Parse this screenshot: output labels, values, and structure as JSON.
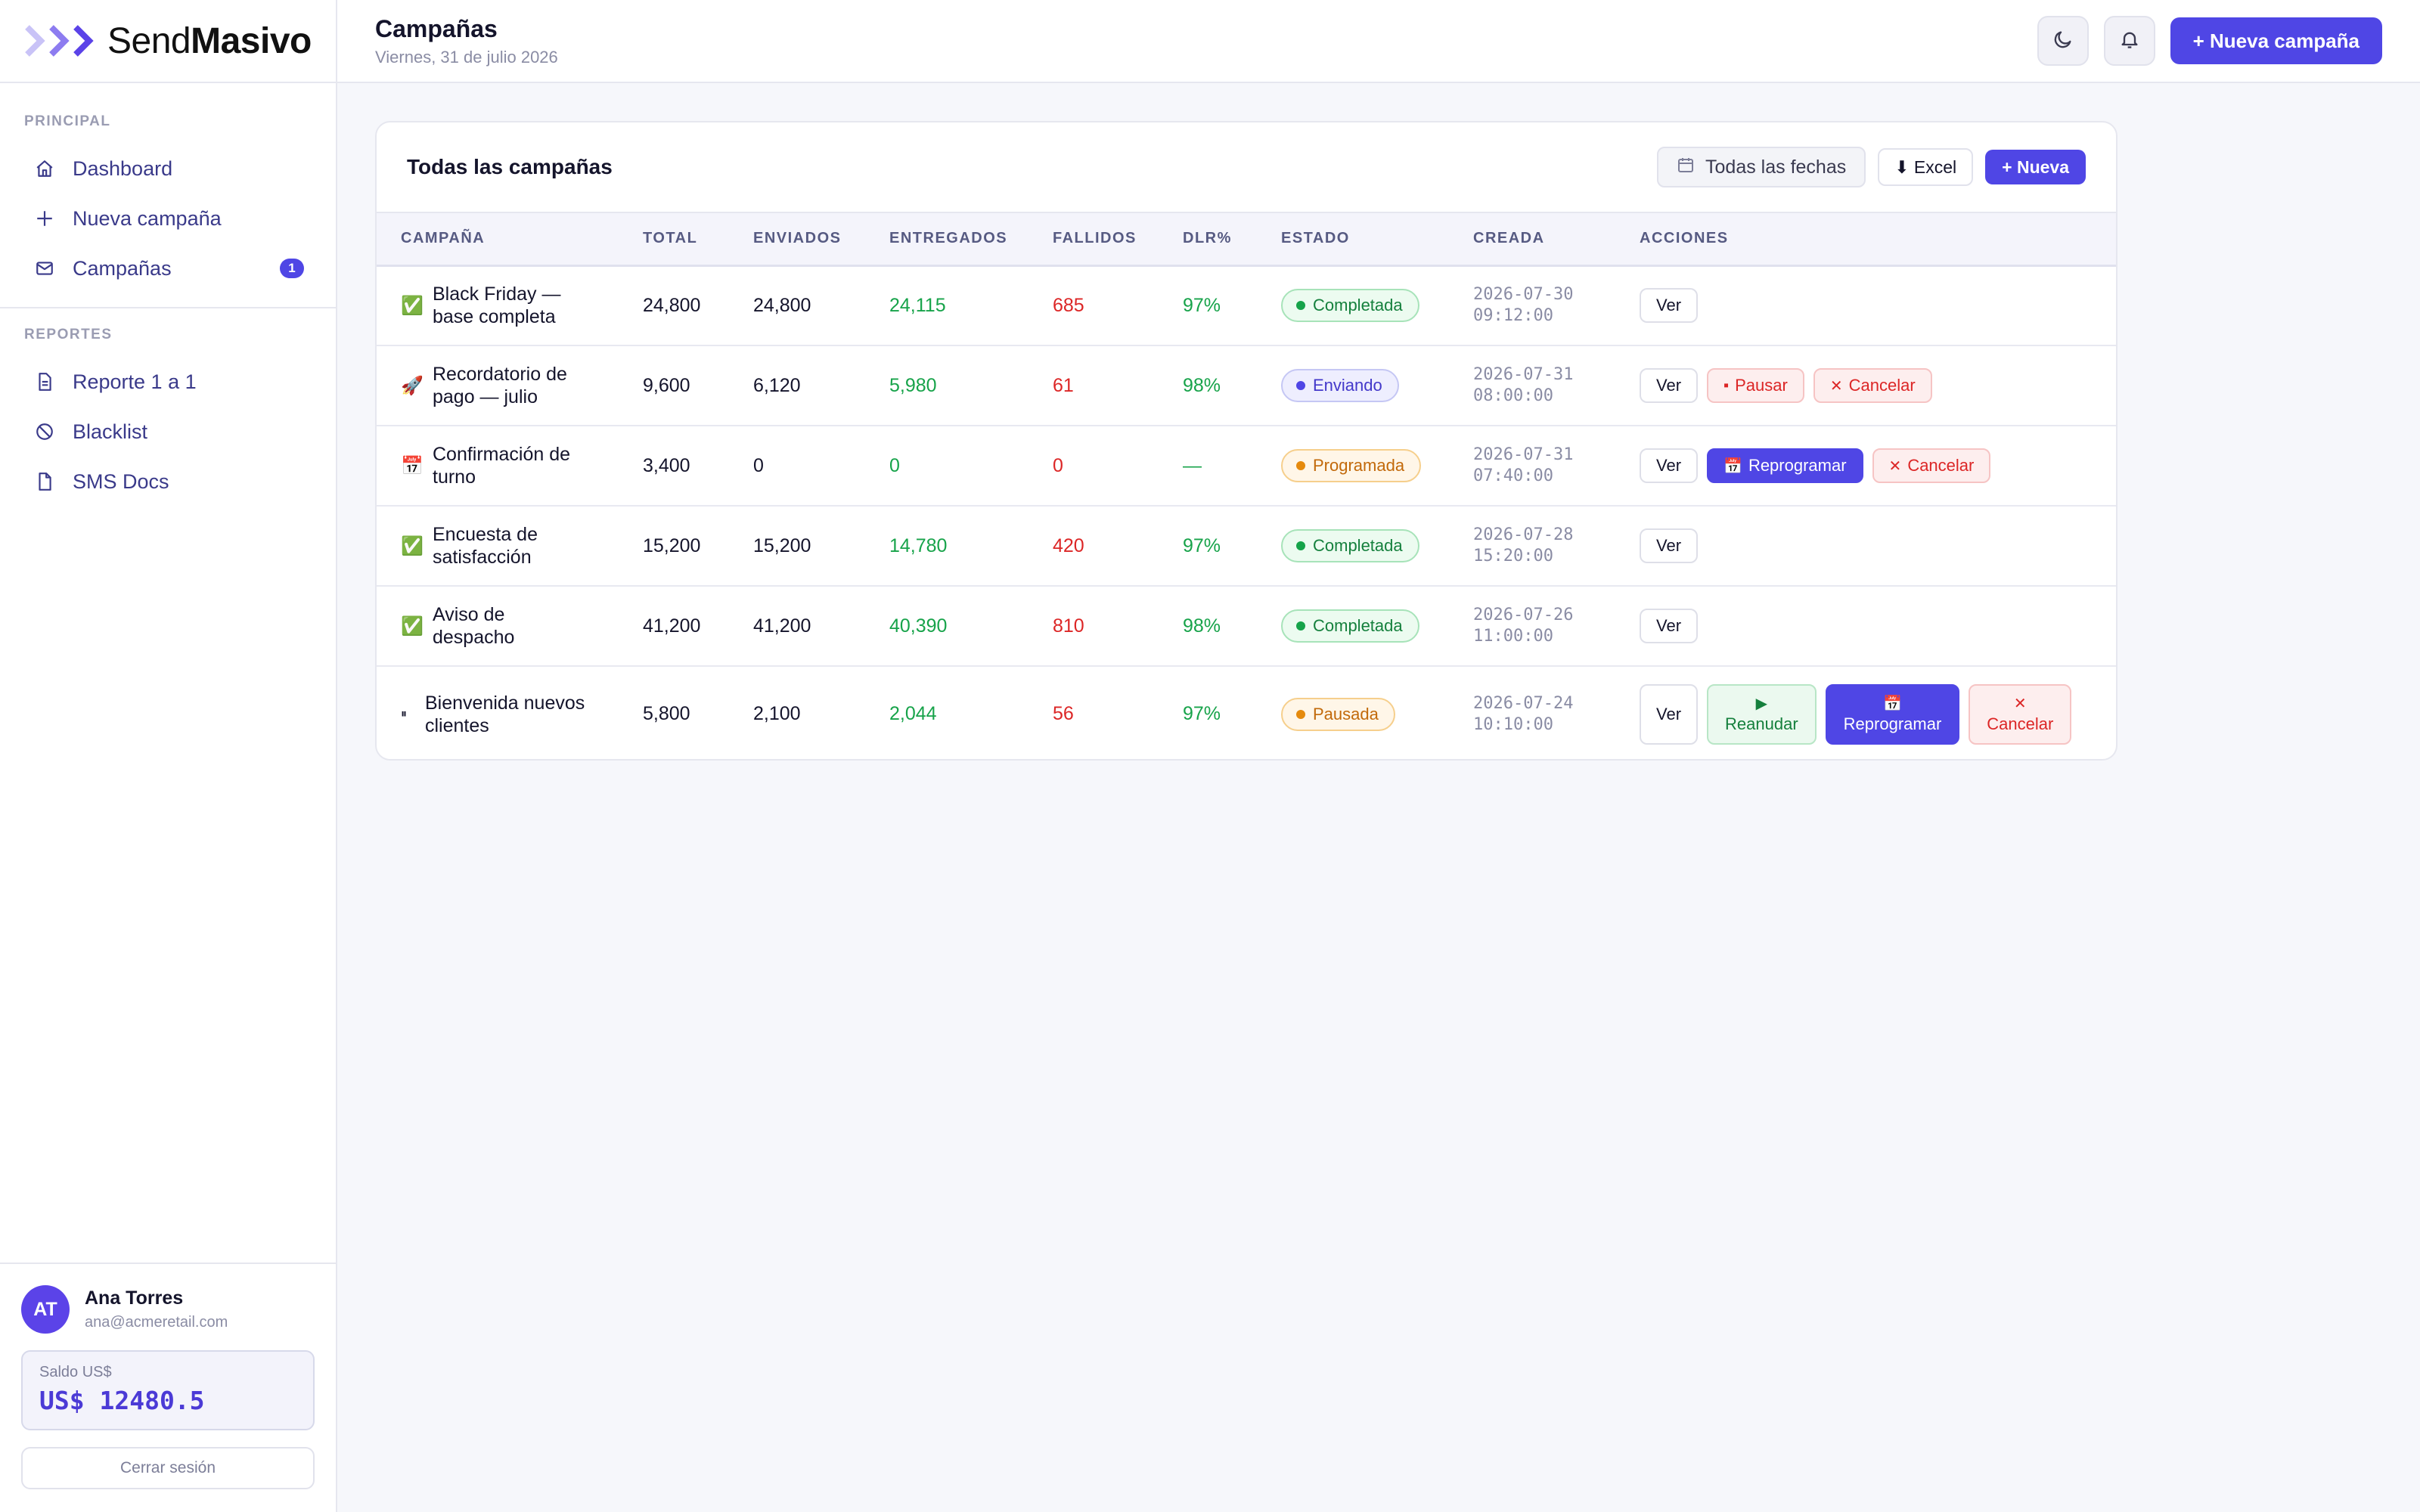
{
  "brand": {
    "name_light": "Send",
    "name_bold": "Masivo"
  },
  "sidebar": {
    "principal_label": "PRINCIPAL",
    "principal_items": [
      {
        "label": "Dashboard",
        "icon": "home-icon"
      },
      {
        "label": "Nueva campaña",
        "icon": "plus-icon"
      },
      {
        "label": "Campañas",
        "icon": "mail-icon",
        "badge": "1"
      }
    ],
    "reportes_label": "REPORTES",
    "reportes_items": [
      {
        "label": "Reporte 1 a 1",
        "icon": "document-icon"
      },
      {
        "label": "Blacklist",
        "icon": "ban-icon"
      },
      {
        "label": "SMS Docs",
        "icon": "file-icon"
      }
    ]
  },
  "user": {
    "initials": "AT",
    "name": "Ana Torres",
    "email": "ana@acmeretail.com",
    "balance_label": "Saldo US$",
    "balance_value": "US$ 12480.5",
    "logout_label": "Cerrar sesión"
  },
  "header": {
    "title": "Campañas",
    "subtitle": "Viernes, 31 de julio 2026",
    "new_campaign_label": "+ Nueva campaña"
  },
  "card": {
    "title": "Todas las campañas",
    "dates_label": "Todas las fechas",
    "excel_label": "⬇ Excel",
    "new_label": "+ Nueva"
  },
  "table": {
    "headers": [
      "CAMPAÑA",
      "TOTAL",
      "ENVIADOS",
      "ENTREGADOS",
      "FALLIDOS",
      "DLR%",
      "ESTADO",
      "CREADA",
      "ACCIONES"
    ],
    "rows": [
      {
        "emoji": "✅",
        "name": "Black Friday — base completa",
        "total": "24,800",
        "sent": "24,800",
        "delivered": "24,115",
        "failed": "685",
        "dlr": "97%",
        "status": "Completada",
        "date": "2026-07-30",
        "time": "09:12:00"
      },
      {
        "emoji": "🚀",
        "name": "Recordatorio de pago — julio",
        "total": "9,600",
        "sent": "6,120",
        "delivered": "5,980",
        "failed": "61",
        "dlr": "98%",
        "status": "Enviando",
        "date": "2026-07-31",
        "time": "08:00:00"
      },
      {
        "emoji": "📅",
        "name": "Confirmación de turno",
        "total": "3,400",
        "sent": "0",
        "delivered": "0",
        "failed": "0",
        "dlr": "—",
        "status": "Programada",
        "date": "2026-07-31",
        "time": "07:40:00"
      },
      {
        "emoji": "✅",
        "name": "Encuesta de satisfacción",
        "total": "15,200",
        "sent": "15,200",
        "delivered": "14,780",
        "failed": "420",
        "dlr": "97%",
        "status": "Completada",
        "date": "2026-07-28",
        "time": "15:20:00"
      },
      {
        "emoji": "✅",
        "name": "Aviso de despacho",
        "total": "41,200",
        "sent": "41,200",
        "delivered": "40,390",
        "failed": "810",
        "dlr": "98%",
        "status": "Completada",
        "date": "2026-07-26",
        "time": "11:00:00"
      },
      {
        "emoji": "⏸",
        "name": "Bienvenida nuevos clientes",
        "total": "5,800",
        "sent": "2,100",
        "delivered": "2,044",
        "failed": "56",
        "dlr": "97%",
        "status": "Pausada",
        "date": "2026-07-24",
        "time": "10:10:00"
      }
    ],
    "actions": {
      "view": "Ver",
      "pause": "Pausar",
      "cancel": "Cancelar",
      "reschedule": "Reprogramar",
      "resume": "Reanudar"
    }
  },
  "colors": {
    "accent": "#4f46e5",
    "success": "#16a34a",
    "danger": "#dc2626",
    "warning": "#e58a0d"
  }
}
